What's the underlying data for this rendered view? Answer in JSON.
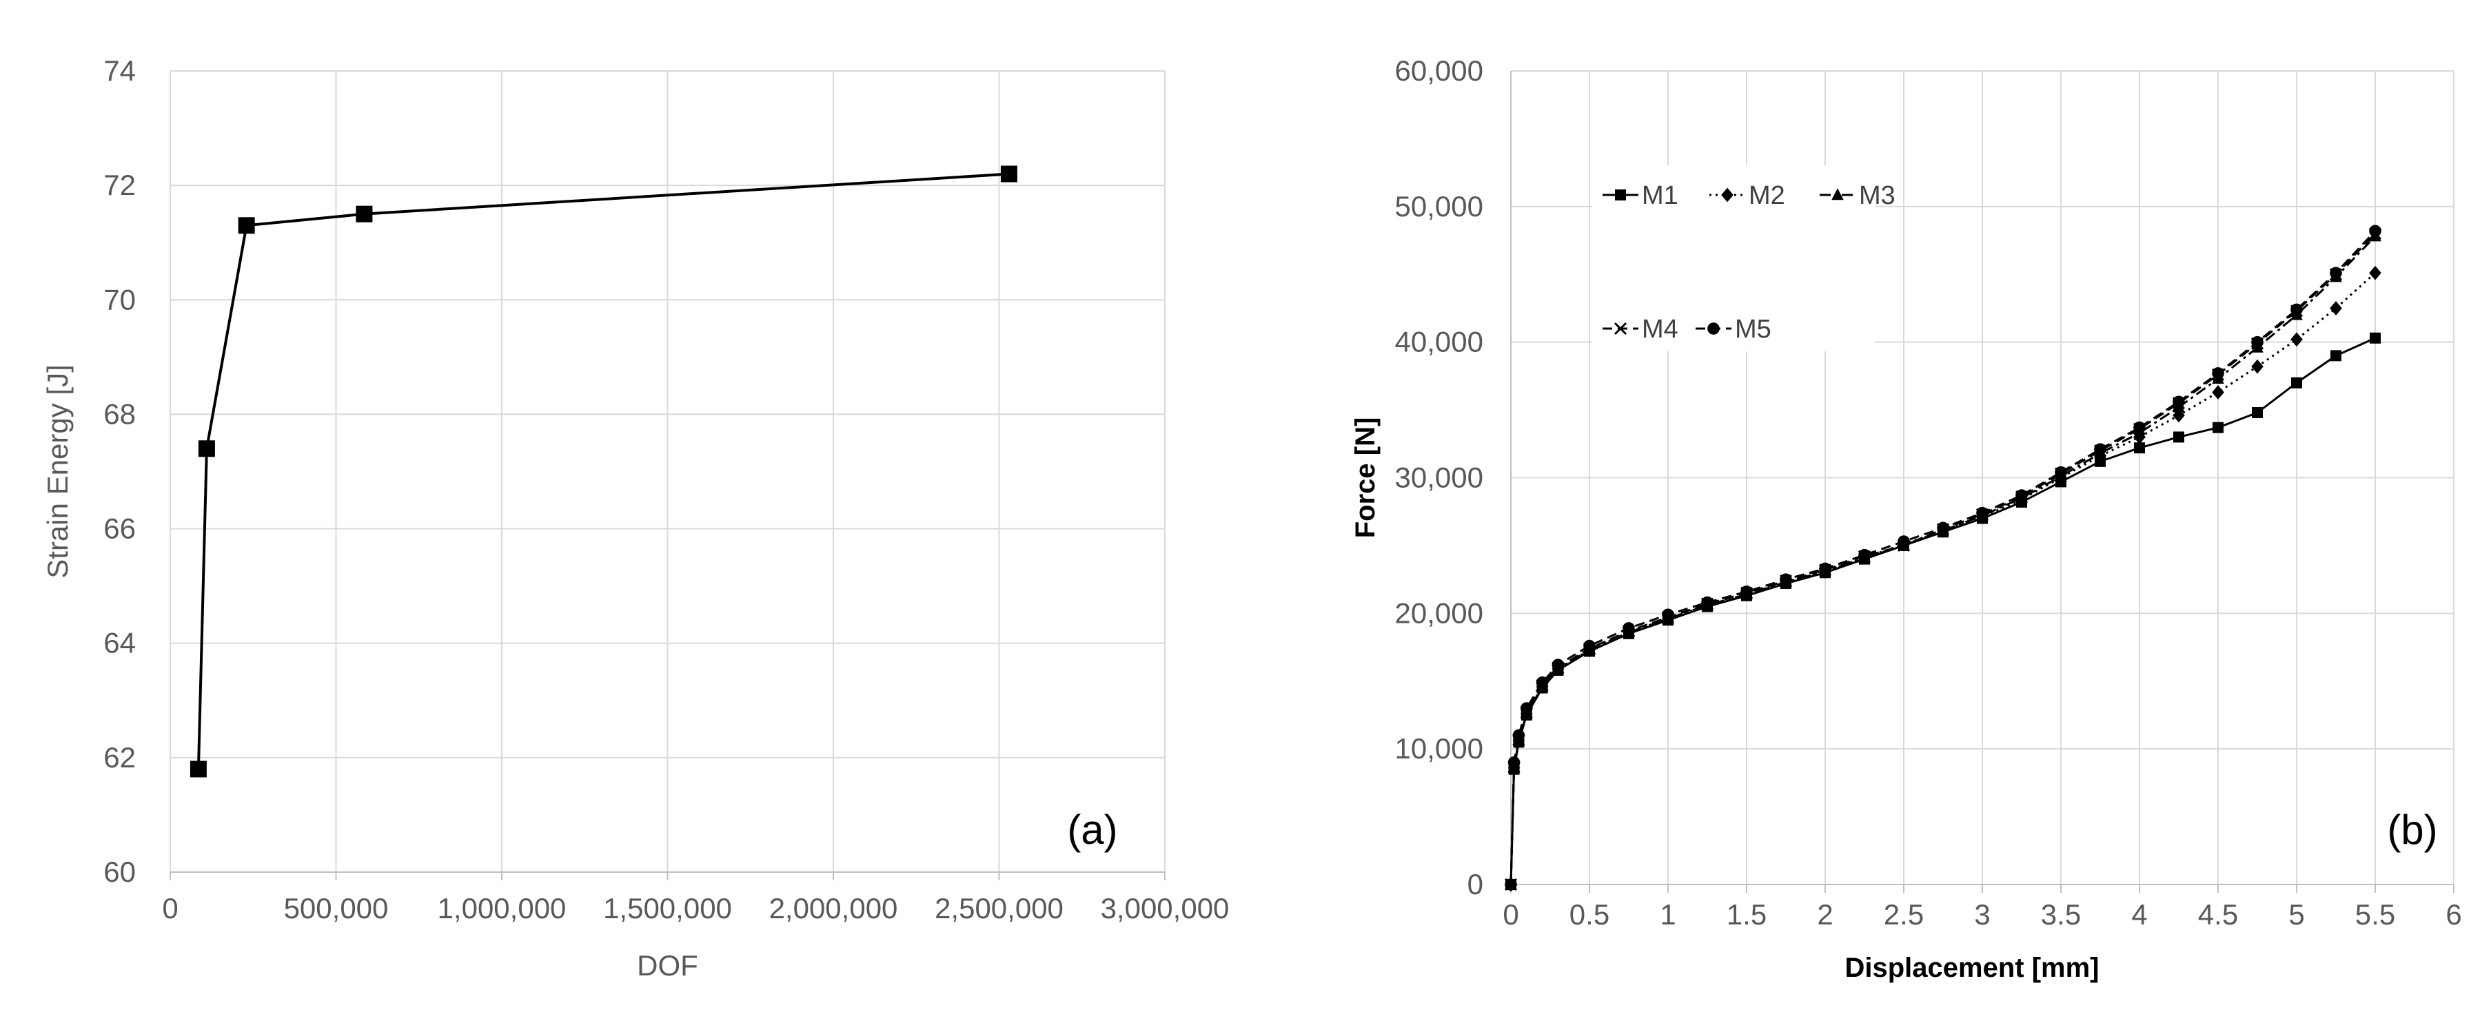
{
  "chart_data": [
    {
      "type": "line",
      "panel_label": "(a)",
      "title": "",
      "xlabel": "DOF",
      "ylabel": "Strain Energy [J]",
      "xlim": [
        0,
        3000000
      ],
      "ylim": [
        60,
        74
      ],
      "x_ticks": [
        "0",
        "500,000",
        "1,000,000",
        "1,500,000",
        "2,000,000",
        "2,500,000",
        "3,000,000"
      ],
      "y_ticks": [
        "60",
        "62",
        "64",
        "66",
        "68",
        "70",
        "72",
        "74"
      ],
      "grid": true,
      "legend": "none",
      "series": [
        {
          "marker": "square",
          "x": [
            85000,
            110000,
            230000,
            585000,
            2530000
          ],
          "y": [
            61.8,
            67.4,
            71.3,
            71.5,
            72.2
          ]
        }
      ]
    },
    {
      "type": "line",
      "panel_label": "(b)",
      "title": "",
      "xlabel": "Displacement [mm]",
      "ylabel": "Force [N]",
      "xlim": [
        0,
        6
      ],
      "ylim": [
        0,
        60000
      ],
      "x_ticks": [
        "0",
        "0.5",
        "1",
        "1.5",
        "2",
        "2.5",
        "3",
        "3.5",
        "4",
        "4.5",
        "5",
        "5.5",
        "6"
      ],
      "y_ticks": [
        "0",
        "10,000",
        "20,000",
        "30,000",
        "40,000",
        "50,000",
        "60,000"
      ],
      "grid": true,
      "legend": "top-left",
      "series": [
        {
          "name": "M1",
          "marker": "square",
          "line": "solid",
          "x": [
            0,
            0.02,
            0.05,
            0.1,
            0.2,
            0.3,
            0.5,
            0.75,
            1.0,
            1.25,
            1.5,
            1.75,
            2.0,
            2.25,
            2.5,
            2.75,
            3.0,
            3.25,
            3.5,
            3.75,
            4.0,
            4.25,
            4.5,
            4.75,
            5.0,
            5.25,
            5.5
          ],
          "y": [
            0,
            8500,
            10500,
            12500,
            14500,
            15800,
            17200,
            18500,
            19500,
            20500,
            21300,
            22200,
            23000,
            24000,
            25000,
            26000,
            27000,
            28200,
            29700,
            31200,
            32200,
            33000,
            33700,
            34800,
            37000,
            39000,
            40300
          ]
        },
        {
          "name": "M2",
          "marker": "diamond",
          "line": "dotted",
          "x": [
            0,
            0.02,
            0.05,
            0.1,
            0.2,
            0.3,
            0.5,
            0.75,
            1.0,
            1.25,
            1.5,
            1.75,
            2.0,
            2.25,
            2.5,
            2.75,
            3.0,
            3.25,
            3.5,
            3.75,
            4.0,
            4.25,
            4.5,
            4.75,
            5.0,
            5.25,
            5.5
          ],
          "y": [
            0,
            8600,
            10600,
            12600,
            14600,
            15900,
            17300,
            18600,
            19600,
            20600,
            21400,
            22300,
            23100,
            24100,
            25100,
            26100,
            27100,
            28400,
            30000,
            31600,
            33000,
            34600,
            36300,
            38200,
            40200,
            42500,
            45100
          ]
        },
        {
          "name": "M3",
          "marker": "triangle",
          "line": "dashdot",
          "x": [
            0,
            0.02,
            0.05,
            0.1,
            0.2,
            0.3,
            0.5,
            0.75,
            1.0,
            1.25,
            1.5,
            1.75,
            2.0,
            2.25,
            2.5,
            2.75,
            3.0,
            3.25,
            3.5,
            3.75,
            4.0,
            4.25,
            4.5,
            4.75,
            5.0,
            5.25,
            5.5
          ],
          "y": [
            0,
            8600,
            10600,
            12600,
            14600,
            15900,
            17300,
            18600,
            19600,
            20600,
            21400,
            22300,
            23100,
            24100,
            25000,
            26100,
            27200,
            28500,
            30100,
            31800,
            33300,
            35200,
            37300,
            39600,
            42000,
            44800,
            47800
          ]
        },
        {
          "name": "M4",
          "marker": "x",
          "line": "dashed",
          "x": [
            0,
            0.02,
            0.05,
            0.1,
            0.2,
            0.3,
            0.5,
            0.75,
            1.0,
            1.25,
            1.5,
            1.75,
            2.0,
            2.25,
            2.5,
            2.75,
            3.0,
            3.25,
            3.5,
            3.75,
            4.0,
            4.25,
            4.5,
            4.75,
            5.0,
            5.25,
            5.5
          ],
          "y": [
            0,
            8700,
            10700,
            12700,
            14700,
            16000,
            17400,
            18700,
            19700,
            20700,
            21500,
            22400,
            23200,
            24200,
            25000,
            26200,
            27300,
            28600,
            30300,
            32000,
            33600,
            35500,
            37600,
            39900,
            42300,
            45000,
            48000
          ]
        },
        {
          "name": "M5",
          "marker": "circle",
          "line": "dashed",
          "x": [
            0,
            0.02,
            0.05,
            0.1,
            0.2,
            0.3,
            0.5,
            0.75,
            1.0,
            1.25,
            1.5,
            1.75,
            2.0,
            2.25,
            2.5,
            2.75,
            3.0,
            3.25,
            3.5,
            3.75,
            4.0,
            4.25,
            4.5,
            4.75,
            5.0,
            5.25,
            5.5
          ],
          "y": [
            0,
            9000,
            11000,
            13000,
            14900,
            16200,
            17600,
            18900,
            19900,
            20800,
            21600,
            22500,
            23300,
            24300,
            25300,
            26300,
            27400,
            28700,
            30400,
            32100,
            33700,
            35600,
            37700,
            40000,
            42400,
            45100,
            48200
          ]
        }
      ]
    }
  ]
}
